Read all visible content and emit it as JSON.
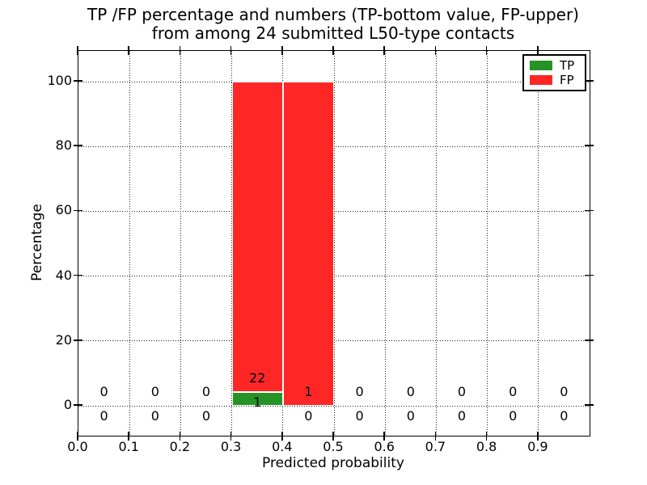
{
  "title": {
    "line1": "TP /FP percentage and numbers (TP-bottom value, FP-upper)",
    "line2": "from among 24 submitted L50-type contacts"
  },
  "chart_data": {
    "type": "bar",
    "stacked": true,
    "title": "TP /FP percentage and numbers (TP-bottom value, FP-upper)\nfrom among 24 submitted L50-type contacts",
    "xlabel": "Predicted probability",
    "ylabel": "Percentage",
    "xlim": [
      0.0,
      1.0
    ],
    "ylim": [
      -9.3,
      109.5
    ],
    "grid": "dotted",
    "bin_edges": [
      0.0,
      0.1,
      0.2,
      0.3,
      0.4,
      0.5,
      0.6,
      0.7,
      0.8,
      0.9,
      1.0
    ],
    "bin_width": 0.1,
    "x_tick_labels": [
      "0.0",
      "0.1",
      "0.2",
      "0.3",
      "0.4",
      "0.5",
      "0.6",
      "0.7",
      "0.8",
      "0.9"
    ],
    "y_tick_values": [
      0,
      20,
      40,
      60,
      80,
      100
    ],
    "y_tick_labels": [
      "0",
      "20",
      "40",
      "60",
      "80",
      "100"
    ],
    "series": [
      {
        "name": "TP",
        "color": "#269326",
        "counts": [
          0,
          0,
          0,
          1,
          0,
          0,
          0,
          0,
          0,
          0
        ],
        "percent": [
          0,
          0,
          0,
          4.35,
          0,
          0,
          0,
          0,
          0,
          0
        ]
      },
      {
        "name": "FP",
        "color": "#ff2626",
        "counts": [
          0,
          0,
          0,
          22,
          1,
          0,
          0,
          0,
          0,
          0
        ],
        "percent": [
          0,
          0,
          0,
          95.65,
          100,
          0,
          0,
          0,
          0,
          0
        ]
      }
    ],
    "annotations": {
      "upper_row": "FP counts",
      "lower_row": "TP counts"
    },
    "legend": {
      "position": "upper right",
      "entries": [
        {
          "label": "TP",
          "color": "#269326"
        },
        {
          "label": "FP",
          "color": "#ff2626"
        }
      ]
    }
  }
}
